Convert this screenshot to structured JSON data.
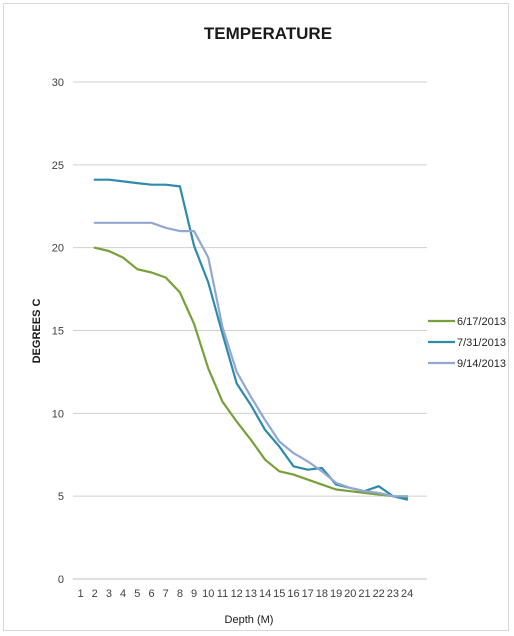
{
  "chart_data": {
    "type": "line",
    "title": "TEMPERATURE",
    "xlabel": "Depth (M)",
    "ylabel": "DEGREES C",
    "x": [
      2,
      3,
      4,
      5,
      6,
      7,
      8,
      9,
      10,
      11,
      12,
      13,
      14,
      15,
      16,
      17,
      18,
      19,
      20,
      21,
      22,
      23,
      24
    ],
    "x_ticks": [
      1,
      2,
      3,
      4,
      5,
      6,
      7,
      8,
      9,
      10,
      11,
      12,
      13,
      14,
      15,
      16,
      17,
      18,
      19,
      20,
      21,
      22,
      23,
      24
    ],
    "y_ticks": [
      0,
      5,
      10,
      15,
      20,
      25,
      30
    ],
    "xlim": [
      1,
      24
    ],
    "ylim": [
      0,
      30
    ],
    "grid": true,
    "legend_position": "right",
    "series": [
      {
        "name": "6/17/2013",
        "color": "#77a03a",
        "values": [
          20.0,
          19.8,
          19.4,
          18.7,
          18.5,
          18.2,
          17.3,
          15.4,
          12.7,
          10.7,
          9.5,
          8.4,
          7.2,
          6.5,
          6.3,
          6.0,
          5.7,
          5.4,
          5.3,
          5.2,
          5.1,
          5.0,
          4.9
        ]
      },
      {
        "name": "7/31/2013",
        "color": "#2e8bab",
        "values": [
          24.1,
          24.1,
          24.0,
          23.9,
          23.8,
          23.8,
          23.7,
          20.1,
          17.9,
          14.8,
          11.8,
          10.5,
          9.0,
          8.0,
          6.8,
          6.6,
          6.7,
          5.7,
          5.5,
          5.3,
          5.6,
          5.0,
          4.8
        ]
      },
      {
        "name": "9/14/2013",
        "color": "#94a8cf",
        "values": [
          21.5,
          21.5,
          21.5,
          21.5,
          21.5,
          21.2,
          21.0,
          21.0,
          19.4,
          15.2,
          12.5,
          11.0,
          9.6,
          8.3,
          7.6,
          7.1,
          6.5,
          5.8,
          5.5,
          5.3,
          5.2,
          5.0,
          5.0
        ]
      }
    ]
  }
}
